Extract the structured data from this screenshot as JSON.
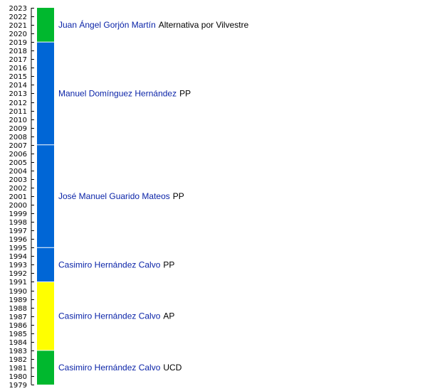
{
  "chart_data": {
    "type": "timeline",
    "title": "",
    "y_axis": {
      "min": 1979,
      "max": 2023,
      "step": 1
    },
    "terms": [
      {
        "start": 1979,
        "end": 1983,
        "mayor": "Casimiro Hernández Calvo",
        "party": "UCD",
        "color": "#00b82e"
      },
      {
        "start": 1983,
        "end": 1991,
        "mayor": "Casimiro Hernández Calvo",
        "party": "AP",
        "color": "#ffff00"
      },
      {
        "start": 1991,
        "end": 1995,
        "mayor": "Casimiro Hernández Calvo",
        "party": "PP",
        "color": "#0066d6"
      },
      {
        "start": 1995,
        "end": 2007,
        "mayor": "José Manuel Guarido Mateos",
        "party": "PP",
        "color": "#0066d6"
      },
      {
        "start": 2007,
        "end": 2019,
        "mayor": "Manuel Domínguez Hernández",
        "party": "PP",
        "color": "#0066d6"
      },
      {
        "start": 2019,
        "end": 2023,
        "mayor": "Juan Ángel Gorjón Martín",
        "party": "Alternativa por Vilvestre",
        "color": "#00b82e"
      }
    ]
  }
}
